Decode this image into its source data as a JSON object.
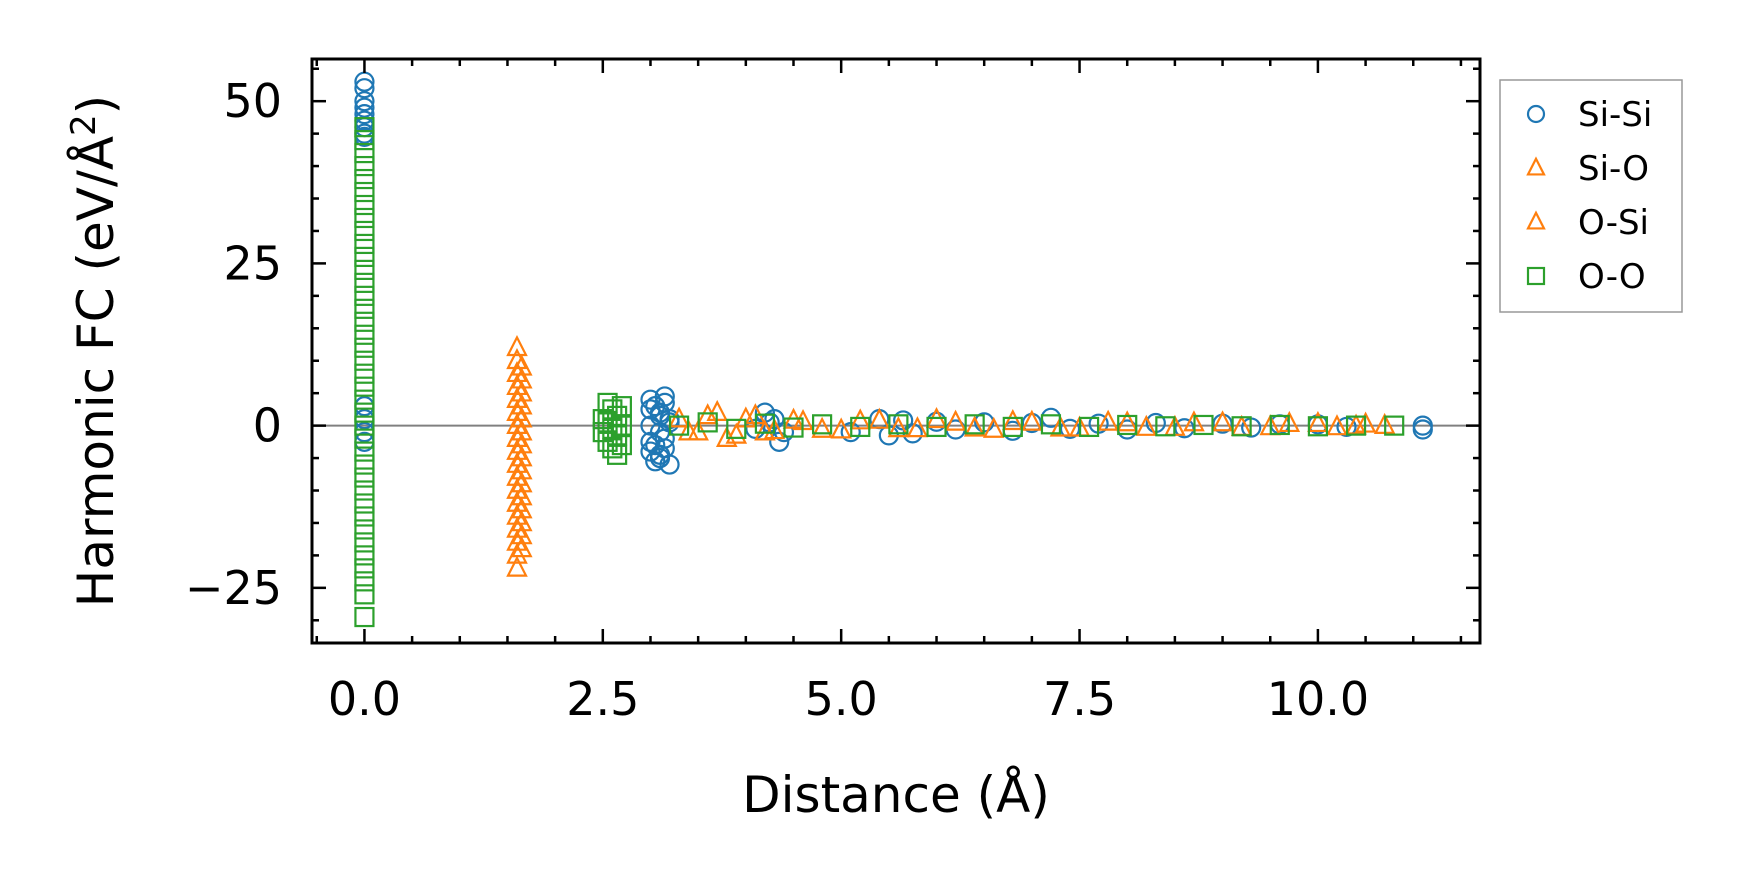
{
  "chart_data": {
    "type": "scatter",
    "title": "",
    "xlabel": "Distance (Å)",
    "ylabel_main": "Harmonic FC (eV/Å",
    "ylabel_sup": "2",
    "ylabel_close": ")",
    "xlim": [
      -0.55,
      11.7
    ],
    "ylim": [
      -33.5,
      56.5
    ],
    "x_ticks": [
      0.0,
      2.5,
      5.0,
      7.5,
      10.0
    ],
    "x_tick_labels": [
      "0.0",
      "2.5",
      "5.0",
      "7.5",
      "10.0"
    ],
    "y_ticks": [
      -25,
      0,
      25,
      50
    ],
    "y_tick_labels": [
      "−25",
      "0",
      "25",
      "50"
    ],
    "zero_line": true,
    "legend_position": "outside-right-top",
    "series": [
      {
        "name": "Si-Si",
        "marker": "circle",
        "color": "#1f77b4",
        "points": [
          [
            0,
            53
          ],
          [
            0,
            52
          ],
          [
            0,
            50
          ],
          [
            0,
            49
          ],
          [
            0,
            48
          ],
          [
            0,
            47
          ],
          [
            0,
            46
          ],
          [
            0,
            45
          ],
          [
            0,
            44.5
          ],
          [
            0,
            3
          ],
          [
            0,
            1
          ],
          [
            0,
            -1
          ],
          [
            0,
            -2.5
          ],
          [
            3.0,
            4
          ],
          [
            3.05,
            3
          ],
          [
            3.1,
            2
          ],
          [
            3.15,
            4.5
          ],
          [
            3.2,
            -6
          ],
          [
            3.1,
            -5
          ],
          [
            3.0,
            -4
          ],
          [
            3.05,
            -3
          ],
          [
            3.15,
            -2
          ],
          [
            3.1,
            -1
          ],
          [
            3.0,
            0
          ],
          [
            3.2,
            1
          ],
          [
            3.1,
            -4.5
          ],
          [
            3.0,
            2.5
          ],
          [
            3.15,
            3.5
          ],
          [
            3.05,
            -5.5
          ],
          [
            3.2,
            0.5
          ],
          [
            3.1,
            1.5
          ],
          [
            3.0,
            -2.5
          ],
          [
            3.15,
            -3.5
          ],
          [
            4.2,
            2
          ],
          [
            4.3,
            1
          ],
          [
            4.4,
            -1
          ],
          [
            4.35,
            -2.5
          ],
          [
            4.25,
            0.5
          ],
          [
            4.1,
            -0.5
          ],
          [
            5.1,
            -1
          ],
          [
            5.4,
            1
          ],
          [
            5.5,
            -1.5
          ],
          [
            5.65,
            0.8
          ],
          [
            5.75,
            -1.2
          ],
          [
            6.0,
            0.6
          ],
          [
            6.2,
            -0.6
          ],
          [
            6.5,
            0.5
          ],
          [
            6.8,
            -0.8
          ],
          [
            7.0,
            0.4
          ],
          [
            7.2,
            1.2
          ],
          [
            7.4,
            -0.5
          ],
          [
            7.7,
            0.3
          ],
          [
            8.0,
            -0.6
          ],
          [
            8.3,
            0.4
          ],
          [
            8.6,
            -0.4
          ],
          [
            9.0,
            0.3
          ],
          [
            9.3,
            -0.3
          ],
          [
            9.6,
            0.2
          ],
          [
            10.0,
            0.2
          ],
          [
            10.3,
            -0.2
          ],
          [
            11.1,
            0
          ],
          [
            11.1,
            -0.6
          ]
        ]
      },
      {
        "name": "Si-O",
        "marker": "triangle",
        "color": "#ff7f0e",
        "points": [
          [
            1.6,
            12
          ],
          [
            1.6,
            10
          ],
          [
            1.6,
            8
          ],
          [
            1.6,
            6
          ],
          [
            1.6,
            4
          ],
          [
            1.6,
            2
          ],
          [
            1.6,
            0
          ],
          [
            1.6,
            -2
          ],
          [
            1.6,
            -4
          ],
          [
            1.6,
            -6
          ],
          [
            1.6,
            -8
          ],
          [
            1.6,
            -10
          ],
          [
            1.6,
            -12
          ],
          [
            1.6,
            -14
          ],
          [
            1.6,
            -16
          ],
          [
            1.6,
            -18
          ],
          [
            1.6,
            -20
          ],
          [
            1.6,
            -22
          ],
          [
            1.65,
            9
          ],
          [
            1.65,
            7
          ],
          [
            1.65,
            5
          ],
          [
            1.65,
            3
          ],
          [
            1.65,
            1
          ],
          [
            1.65,
            -1
          ],
          [
            1.65,
            -3
          ],
          [
            1.65,
            -5
          ],
          [
            1.65,
            -7
          ],
          [
            1.65,
            -9
          ],
          [
            1.65,
            -11
          ],
          [
            1.65,
            -13
          ],
          [
            1.65,
            -15
          ],
          [
            1.65,
            -17
          ],
          [
            1.65,
            -19
          ],
          [
            3.3,
            1
          ],
          [
            3.5,
            -1
          ],
          [
            3.7,
            2
          ],
          [
            3.9,
            -1.5
          ],
          [
            4.1,
            1.5
          ],
          [
            4.3,
            -0.8
          ],
          [
            4.5,
            0.8
          ],
          [
            4.8,
            -0.6
          ],
          [
            5.2,
            0.7
          ],
          [
            5.6,
            -0.5
          ],
          [
            6.0,
            0.9
          ],
          [
            6.4,
            -0.4
          ],
          [
            6.8,
            0.6
          ],
          [
            7.3,
            -0.4
          ],
          [
            7.8,
            0.5
          ],
          [
            8.2,
            -0.3
          ],
          [
            8.7,
            0.4
          ],
          [
            9.2,
            -0.3
          ],
          [
            9.7,
            0.3
          ],
          [
            10.2,
            -0.2
          ],
          [
            10.5,
            0.2
          ],
          [
            10.7,
            0
          ]
        ]
      },
      {
        "name": "O-Si",
        "marker": "triangle",
        "color": "#ff7f0e",
        "points": [
          [
            3.4,
            -1
          ],
          [
            3.6,
            1.5
          ],
          [
            3.8,
            -2
          ],
          [
            4.0,
            1
          ],
          [
            4.2,
            -1
          ],
          [
            4.6,
            0.6
          ],
          [
            5.0,
            -0.7
          ],
          [
            5.4,
            0.8
          ],
          [
            5.8,
            -0.5
          ],
          [
            6.2,
            0.5
          ],
          [
            6.6,
            -0.6
          ],
          [
            7.0,
            0.5
          ],
          [
            7.5,
            -0.4
          ],
          [
            8.0,
            0.4
          ],
          [
            8.5,
            -0.3
          ],
          [
            9.0,
            0.4
          ],
          [
            9.5,
            -0.2
          ],
          [
            10.0,
            0.3
          ],
          [
            10.4,
            -0.1
          ]
        ]
      },
      {
        "name": "O-O",
        "marker": "square",
        "color": "#2ca02c",
        "points": [
          [
            0,
            46
          ],
          [
            0,
            44
          ],
          [
            0,
            42
          ],
          [
            0,
            40
          ],
          [
            0,
            38
          ],
          [
            0,
            36
          ],
          [
            0,
            34
          ],
          [
            0,
            32
          ],
          [
            0,
            30
          ],
          [
            0,
            28
          ],
          [
            0,
            26
          ],
          [
            0,
            24
          ],
          [
            0,
            22
          ],
          [
            0,
            20
          ],
          [
            0,
            18
          ],
          [
            0,
            16
          ],
          [
            0,
            14
          ],
          [
            0,
            12
          ],
          [
            0,
            10
          ],
          [
            0,
            8
          ],
          [
            0,
            6
          ],
          [
            0,
            4
          ],
          [
            0,
            2
          ],
          [
            0,
            0
          ],
          [
            0,
            -2
          ],
          [
            0,
            -4
          ],
          [
            0,
            -6
          ],
          [
            0,
            -8
          ],
          [
            0,
            -10
          ],
          [
            0,
            -12
          ],
          [
            0,
            -14
          ],
          [
            0,
            -16
          ],
          [
            0,
            -18
          ],
          [
            0,
            -20
          ],
          [
            0,
            -22
          ],
          [
            0,
            -24
          ],
          [
            0,
            -26
          ],
          [
            0,
            -29.5
          ],
          [
            2.55,
            3.5
          ],
          [
            2.6,
            2.5
          ],
          [
            2.65,
            1.5
          ],
          [
            2.55,
            0.5
          ],
          [
            2.6,
            -0.5
          ],
          [
            2.65,
            -1.5
          ],
          [
            2.55,
            -2.5
          ],
          [
            2.6,
            -3.5
          ],
          [
            2.65,
            -4.5
          ],
          [
            2.7,
            3
          ],
          [
            2.7,
            -3
          ],
          [
            2.5,
            1
          ],
          [
            2.5,
            -1
          ],
          [
            2.7,
            0
          ],
          [
            3.3,
            0
          ],
          [
            3.6,
            0.5
          ],
          [
            3.9,
            -0.5
          ],
          [
            4.2,
            0.3
          ],
          [
            4.5,
            -0.3
          ],
          [
            4.8,
            0.2
          ],
          [
            5.2,
            -0.2
          ],
          [
            5.6,
            0.2
          ],
          [
            6.0,
            -0.2
          ],
          [
            6.4,
            0.2
          ],
          [
            6.8,
            -0.2
          ],
          [
            7.2,
            0.2
          ],
          [
            7.6,
            -0.2
          ],
          [
            8.0,
            0.1
          ],
          [
            8.4,
            -0.1
          ],
          [
            8.8,
            0.1
          ],
          [
            9.2,
            -0.1
          ],
          [
            9.6,
            0.1
          ],
          [
            10.0,
            -0.1
          ],
          [
            10.4,
            0
          ],
          [
            10.8,
            0
          ]
        ]
      }
    ]
  }
}
